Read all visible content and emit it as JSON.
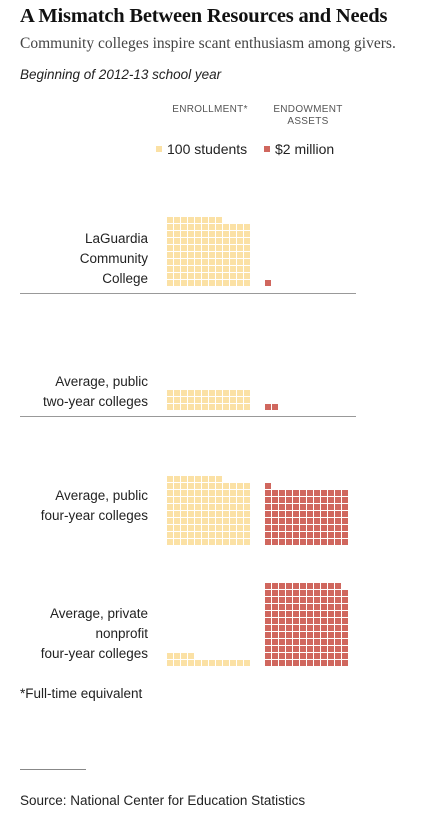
{
  "title": "A Mismatch Between Resources and Needs",
  "subtitle": "Community colleges inspire scant enthusiasm among givers.",
  "note": "Beginning of 2012-13 school year",
  "footnote": "*Full-time equivalent",
  "source": "Source: National Center for Education Statistics",
  "colors": {
    "enrollment": "#fbe1a5",
    "endowment": "#d0675e"
  },
  "chart_data": {
    "type": "unit-chart",
    "columns": [
      {
        "key": "enrollment",
        "header_line1": "ENROLLMENT*",
        "header_line2": "",
        "legend": "100 students",
        "unit": 100
      },
      {
        "key": "endowment",
        "header_line1": "ENDOWMENT",
        "header_line2": "ASSETS",
        "legend": "$2 million",
        "unit": 2
      }
    ],
    "rows": [
      {
        "label_lines": [
          "LaGuardia",
          "Community",
          "College"
        ],
        "enrollment_squares": 116,
        "endowment_squares": 1
      },
      {
        "label_lines": [
          "Average, public",
          "two-year colleges"
        ],
        "enrollment_squares": 36,
        "endowment_squares": 2
      },
      {
        "label_lines": [
          "Average, public",
          "four-year colleges"
        ],
        "enrollment_squares": 116,
        "endowment_squares": 97
      },
      {
        "label_lines": [
          "Average, private",
          "nonprofit",
          "four-year colleges"
        ],
        "enrollment_squares": 16,
        "endowment_squares": 143
      }
    ]
  }
}
